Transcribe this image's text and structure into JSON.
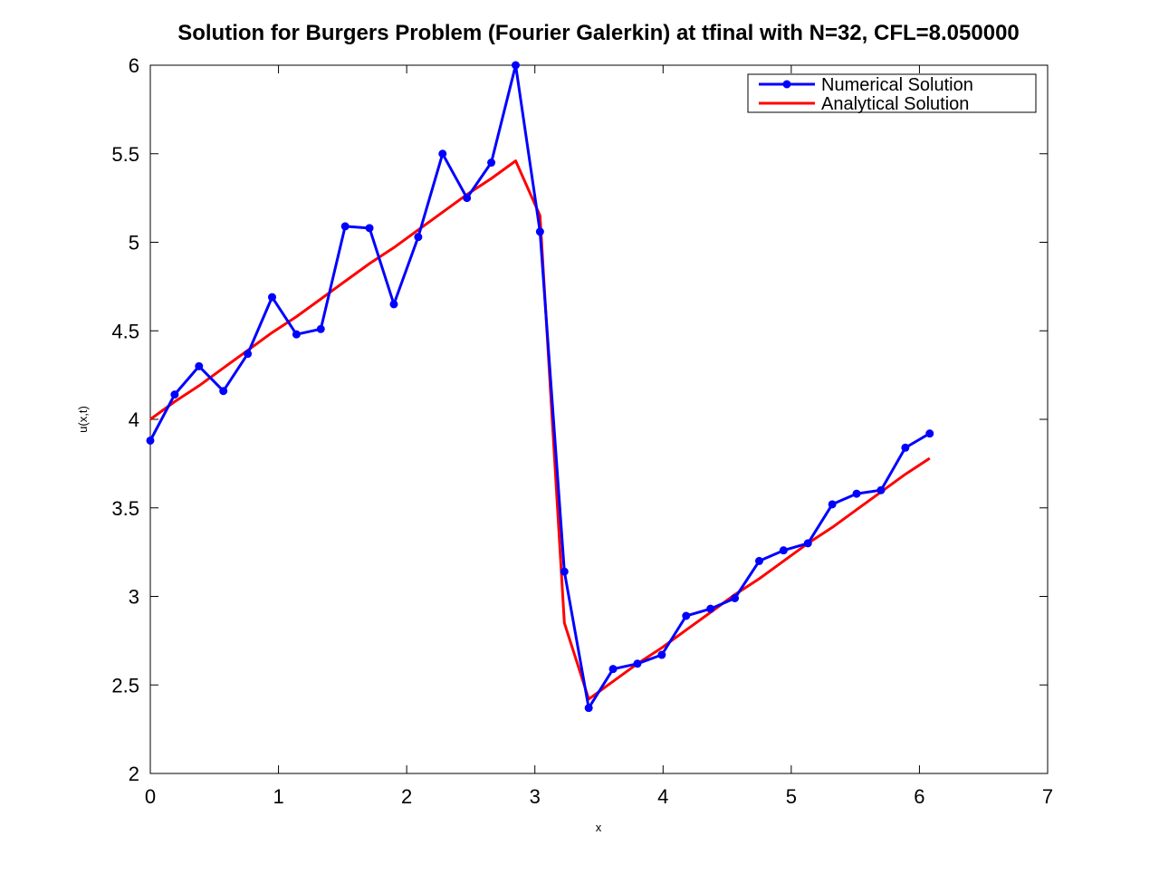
{
  "chart_data": {
    "type": "line",
    "title": "Solution for Burgers Problem (Fourier Galerkin) at tfinal with N=32, CFL=8.050000",
    "xlabel": "x",
    "ylabel": "u(x,t)",
    "xlim": [
      0,
      7
    ],
    "ylim": [
      2,
      6
    ],
    "xticks": [
      0,
      1,
      2,
      3,
      4,
      5,
      6,
      7
    ],
    "yticks": [
      2,
      2.5,
      3,
      3.5,
      4,
      4.5,
      5,
      5.5,
      6
    ],
    "xtick_labels": [
      "0",
      "1",
      "2",
      "3",
      "4",
      "5",
      "6",
      "7"
    ],
    "ytick_labels": [
      "2",
      "2.5",
      "3",
      "3.5",
      "4",
      "4.5",
      "5",
      "5.5",
      "6"
    ],
    "grid": false,
    "legend_position": "top-right",
    "series": [
      {
        "name": "Numerical Solution",
        "color": "#0000ff",
        "marker": "circle",
        "x": [
          0,
          0.19,
          0.38,
          0.57,
          0.76,
          0.95,
          1.14,
          1.33,
          1.52,
          1.71,
          1.9,
          2.09,
          2.28,
          2.47,
          2.66,
          2.85,
          3.04,
          3.23,
          3.42,
          3.61,
          3.8,
          3.99,
          4.18,
          4.37,
          4.56,
          4.75,
          4.94,
          5.13,
          5.32,
          5.51,
          5.7,
          5.89,
          6.08
        ],
        "y": [
          3.88,
          4.14,
          4.3,
          4.16,
          4.37,
          4.69,
          4.48,
          4.51,
          5.09,
          5.08,
          4.65,
          5.03,
          5.5,
          5.25,
          5.45,
          6.0,
          5.06,
          3.14,
          2.37,
          2.59,
          2.62,
          2.67,
          2.89,
          2.93,
          2.99,
          3.2,
          3.26,
          3.3,
          3.52,
          3.58,
          3.6,
          3.84,
          3.92
        ]
      },
      {
        "name": "Analytical Solution",
        "color": "#ff0000",
        "marker": "none",
        "x": [
          0,
          0.19,
          0.38,
          0.57,
          0.76,
          0.95,
          1.14,
          1.33,
          1.52,
          1.71,
          1.9,
          2.09,
          2.28,
          2.47,
          2.66,
          2.85,
          3.04,
          3.23,
          3.42,
          3.61,
          3.8,
          3.99,
          4.18,
          4.37,
          4.56,
          4.75,
          4.94,
          5.13,
          5.32,
          5.51,
          5.7,
          5.89,
          6.08
        ],
        "y": [
          4.0,
          4.1,
          4.19,
          4.29,
          4.39,
          4.49,
          4.58,
          4.68,
          4.78,
          4.88,
          4.97,
          5.07,
          5.17,
          5.27,
          5.36,
          5.46,
          5.15,
          2.85,
          2.42,
          2.52,
          2.62,
          2.71,
          2.81,
          2.91,
          3.01,
          3.1,
          3.2,
          3.3,
          3.39,
          3.49,
          3.59,
          3.69,
          3.78
        ]
      }
    ]
  }
}
